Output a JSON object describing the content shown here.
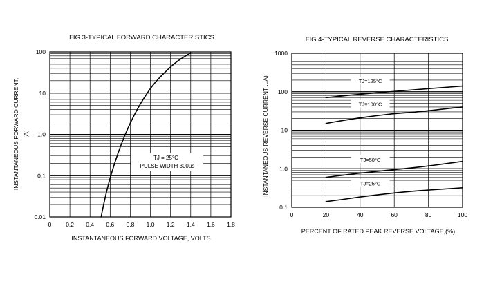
{
  "chart_data": [
    {
      "type": "line",
      "title": "FIG.3-TYPICAL FORWARD CHARACTERISTICS",
      "xlabel": "INSTANTANEOUS FORWARD VOLTAGE, VOLTS",
      "ylabel_line1": "INSTANTANEOUS FORWARD CURRENT,",
      "ylabel_line2": "(A)",
      "x_scale": "linear",
      "y_scale": "log",
      "xlim": [
        0,
        1.8
      ],
      "ylim": [
        0.01,
        100
      ],
      "x_ticks": [
        "0",
        "0.2",
        "0.4",
        "0.6",
        "0.8",
        "1.0",
        "1.2",
        "1.4",
        "1.6",
        "1.8"
      ],
      "y_ticks": [
        "0.01",
        "0.1",
        "1.0",
        "10",
        "100"
      ],
      "grid": true,
      "annotations": [
        "TJ = 25°C",
        "PULSE WIDTH 300us"
      ],
      "series": [
        {
          "x": [
            0.51,
            0.55,
            0.6,
            0.65,
            0.7,
            0.75,
            0.8,
            0.85,
            0.9,
            0.95,
            1.0,
            1.05,
            1.1,
            1.15,
            1.2,
            1.25,
            1.3,
            1.35,
            1.4
          ],
          "y": [
            0.01,
            0.03,
            0.09,
            0.22,
            0.5,
            1.0,
            1.9,
            3.3,
            5.5,
            8.5,
            13,
            18.5,
            25,
            33,
            43,
            55,
            67,
            80,
            95
          ]
        }
      ]
    },
    {
      "type": "line",
      "title": "FIG.4-TYPICAL REVERSE CHARACTERISTICS",
      "xlabel": "PERCENT OF RATED PEAK REVERSE VOLTAGE,(%)",
      "ylabel": "INSTANTANEOUS  REVERSE  CURRENT ,uA)",
      "x_scale": "linear",
      "y_scale": "log",
      "xlim": [
        0,
        100
      ],
      "ylim": [
        0.1,
        1000
      ],
      "x_ticks": [
        "0",
        "20",
        "40",
        "60",
        "80",
        "100"
      ],
      "y_ticks": [
        "0.1",
        "1.0",
        "10",
        "100",
        "1000"
      ],
      "grid": true,
      "series": [
        {
          "name": "TJ=125°C",
          "x": [
            20,
            30,
            40,
            50,
            60,
            70,
            80,
            90,
            100
          ],
          "y": [
            70,
            78,
            86,
            94,
            102,
            111,
            120,
            130,
            140
          ]
        },
        {
          "name": "TJ=100°C",
          "x": [
            20,
            30,
            40,
            50,
            60,
            70,
            80,
            90,
            100
          ],
          "y": [
            15,
            18,
            21,
            24,
            27,
            29,
            32,
            36,
            40
          ]
        },
        {
          "name": "TJ=50°C",
          "x": [
            20,
            30,
            40,
            50,
            60,
            70,
            80,
            90,
            100
          ],
          "y": [
            0.6,
            0.68,
            0.77,
            0.86,
            0.95,
            1.05,
            1.18,
            1.35,
            1.55
          ]
        },
        {
          "name": "TJ=25°C",
          "x": [
            20,
            30,
            40,
            50,
            60,
            70,
            80,
            90,
            100
          ],
          "y": [
            0.14,
            0.16,
            0.185,
            0.21,
            0.235,
            0.26,
            0.28,
            0.3,
            0.32
          ]
        }
      ]
    }
  ]
}
